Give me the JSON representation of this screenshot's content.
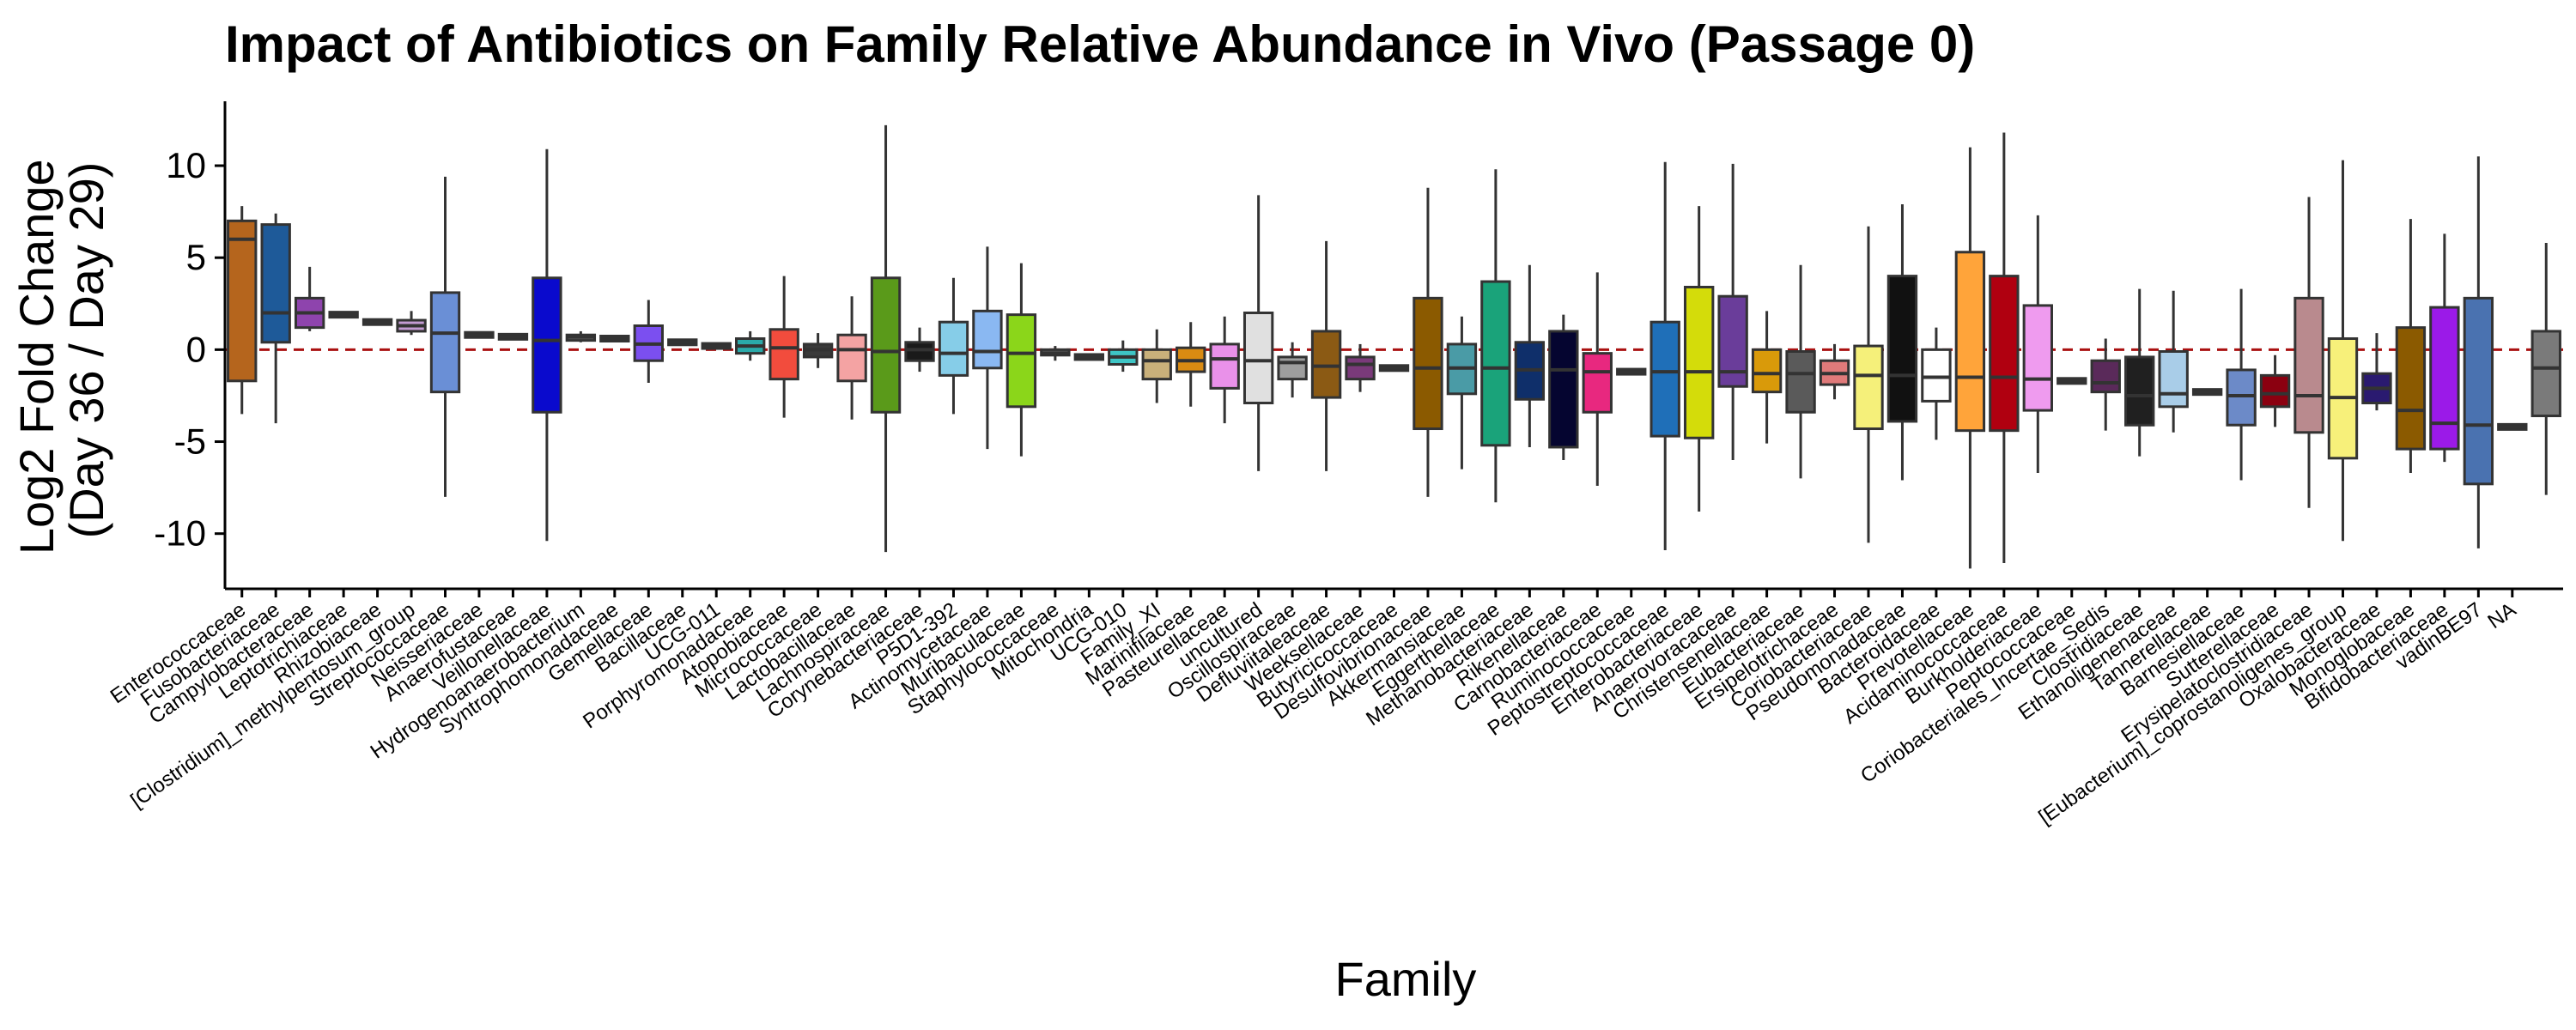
{
  "chart_data": {
    "type": "box",
    "title": "Impact of Antibiotics on Family Relative Abundance in Vivo (Passage 0)",
    "xlabel": "Family",
    "ylabel_line1": "Log2 Fold Change",
    "ylabel_line2": "(Day 36 / Day 29)",
    "ylim": [
      -13,
      13.5
    ],
    "yticks": [
      10,
      5,
      0,
      -5,
      -10
    ],
    "ytick_labels": [
      "10",
      "5",
      "0",
      "-5",
      "-10"
    ],
    "reference_line": {
      "y": 0,
      "color": "#aa1111",
      "style": "dashed"
    },
    "grid": false,
    "fields": [
      "family",
      "whisker_low",
      "q1",
      "median",
      "q3",
      "whisker_high",
      "color"
    ],
    "boxes": [
      [
        "Enterococcaceae",
        -3.5,
        -1.7,
        6.0,
        7.0,
        7.8,
        "#b5651d"
      ],
      [
        "Fusobacteriaceae",
        -4.0,
        0.4,
        2.0,
        6.8,
        7.4,
        "#1e5a99"
      ],
      [
        "Campylobacteraceae",
        1.0,
        1.2,
        2.0,
        2.8,
        4.5,
        "#8e44ad"
      ],
      [
        "Leptotrichiaceae",
        1.9,
        1.9,
        1.9,
        1.9,
        1.9,
        "#555555"
      ],
      [
        "Rhizobiaceae",
        1.5,
        1.5,
        1.5,
        1.5,
        1.5,
        "#555555"
      ],
      [
        "[Clostridium]_methylpentosum_group",
        0.8,
        1.0,
        1.3,
        1.6,
        2.1,
        "#c39bd3"
      ],
      [
        "Streptococcaceae",
        -8.0,
        -2.3,
        0.9,
        3.1,
        9.4,
        "#6a8fd6"
      ],
      [
        "Neisseriaceae",
        0.8,
        0.8,
        0.8,
        0.8,
        0.8,
        "#555555"
      ],
      [
        "Anaerofustaceae",
        0.7,
        0.7,
        0.7,
        0.7,
        0.7,
        "#555555"
      ],
      [
        "Veillonellaceae",
        -10.4,
        -3.4,
        0.5,
        3.9,
        10.9,
        "#0a0acd"
      ],
      [
        "Hydrogenoanaerobacterium",
        0.4,
        0.5,
        0.7,
        0.8,
        1.0,
        "#555555"
      ],
      [
        "Syntrophomonadaceae",
        0.6,
        0.6,
        0.6,
        0.6,
        0.6,
        "#555555"
      ],
      [
        "Gemellaceae",
        -1.8,
        -0.6,
        0.3,
        1.3,
        2.7,
        "#7b4ff0"
      ],
      [
        "Bacillaceae",
        0.4,
        0.4,
        0.4,
        0.4,
        0.4,
        "#555555"
      ],
      [
        "UCG-011",
        0.2,
        0.2,
        0.2,
        0.2,
        0.2,
        "#555555"
      ],
      [
        "Porphyromonadaceae",
        -0.6,
        -0.2,
        0.2,
        0.6,
        1.0,
        "#2aa9a9"
      ],
      [
        "Atopobiaceae",
        -3.7,
        -1.6,
        0.1,
        1.1,
        4.0,
        "#f24c3d"
      ],
      [
        "Micrococcaceae",
        -1.0,
        -0.4,
        0.0,
        0.3,
        0.9,
        "#3a3a3a"
      ],
      [
        "Lactobacillaceae",
        -3.8,
        -1.7,
        0.0,
        0.8,
        2.9,
        "#f4a3a3"
      ],
      [
        "Lachnospiraceae",
        -11.0,
        -3.4,
        -0.1,
        3.9,
        12.2,
        "#5a9a1a"
      ],
      [
        "Corynebacteriaceae",
        -1.2,
        -0.6,
        0.0,
        0.4,
        1.2,
        "#1a1a1a"
      ],
      [
        "P5D1-392",
        -3.5,
        -1.4,
        -0.2,
        1.5,
        3.9,
        "#86cde8"
      ],
      [
        "Actinomycetaceae",
        -5.4,
        -1.0,
        -0.1,
        2.1,
        5.6,
        "#8ab8f2"
      ],
      [
        "Muribaculaceae",
        -5.8,
        -3.1,
        -0.2,
        1.9,
        4.7,
        "#8bd61a"
      ],
      [
        "Staphylococcaceae",
        -0.6,
        -0.3,
        -0.2,
        0.0,
        0.2,
        "#555555"
      ],
      [
        "Mitochondria",
        -0.4,
        -0.4,
        -0.4,
        -0.4,
        -0.4,
        "#555555"
      ],
      [
        "UCG-010",
        -1.2,
        -0.8,
        -0.4,
        0.0,
        0.5,
        "#3ec5c5"
      ],
      [
        "Family_XI",
        -2.9,
        -1.6,
        -0.6,
        0.0,
        1.1,
        "#c9b07a"
      ],
      [
        "Marinifilaceae",
        -3.1,
        -1.2,
        -0.6,
        0.1,
        1.5,
        "#d98b12"
      ],
      [
        "Pasteurellaceae",
        -4.0,
        -2.1,
        -0.5,
        0.3,
        1.8,
        "#e991e9"
      ],
      [
        "uncultured",
        -6.6,
        -2.9,
        -0.6,
        2.0,
        8.4,
        "#e0e0e0"
      ],
      [
        "Oscillospiraceae",
        -2.6,
        -1.6,
        -0.7,
        -0.4,
        0.4,
        "#9e9e9e"
      ],
      [
        "Defluviitaleaceae",
        -6.6,
        -2.6,
        -0.9,
        1.0,
        5.9,
        "#8b5a14"
      ],
      [
        "Weeksellaceae",
        -2.3,
        -1.6,
        -0.8,
        -0.4,
        0.3,
        "#7a3a7a"
      ],
      [
        "Butyricicoccaceae",
        -1.0,
        -1.0,
        -1.0,
        -1.0,
        -1.0,
        "#555555"
      ],
      [
        "Desulfovibrionaceae",
        -8.0,
        -4.3,
        -1.0,
        2.8,
        8.8,
        "#8b5a00"
      ],
      [
        "Akkermansiaceae",
        -6.5,
        -2.4,
        -1.0,
        0.3,
        1.8,
        "#4a9ba6"
      ],
      [
        "Eggerthellaceae",
        -8.3,
        -5.2,
        -1.0,
        3.7,
        9.8,
        "#1aa37a"
      ],
      [
        "Methanobacteriaceae",
        -5.3,
        -2.7,
        -1.1,
        0.4,
        4.6,
        "#0f2f6a"
      ],
      [
        "Rikenellaceae",
        -6.0,
        -5.3,
        -1.1,
        1.0,
        1.9,
        "#050530"
      ],
      [
        "Carnobacteriaceae",
        -7.4,
        -3.4,
        -1.2,
        -0.2,
        4.2,
        "#e8287f"
      ],
      [
        "Ruminococcaceae",
        -1.2,
        -1.2,
        -1.2,
        -1.2,
        -1.2,
        "#555555"
      ],
      [
        "Peptostreptococcaceae",
        -10.9,
        -4.7,
        -1.2,
        1.5,
        10.2,
        "#1f6fb8"
      ],
      [
        "Enterobacteriaceae",
        -8.8,
        -4.8,
        -1.2,
        3.4,
        7.8,
        "#d4dc0a"
      ],
      [
        "Anaerovoracaceae",
        -6.0,
        -2.0,
        -1.2,
        2.9,
        10.1,
        "#6a3d9a"
      ],
      [
        "Christensenellaceae",
        -5.1,
        -2.3,
        -1.3,
        0.0,
        2.1,
        "#d99a0a"
      ],
      [
        "Eubacteriaceae",
        -7.0,
        -3.4,
        -1.3,
        -0.1,
        4.6,
        "#5a5a5a"
      ],
      [
        "Ersipelotrichaceae",
        -2.7,
        -1.9,
        -1.3,
        -0.6,
        0.3,
        "#e07a7a"
      ],
      [
        "Coriobacteriaceae",
        -10.5,
        -4.3,
        -1.4,
        0.2,
        6.7,
        "#f5f07a"
      ],
      [
        "Pseudomonadaceae",
        -7.1,
        -3.9,
        -1.4,
        4.0,
        7.9,
        "#111111"
      ],
      [
        "Bacteroidaceae",
        -4.9,
        -2.8,
        -1.5,
        0.0,
        1.2,
        "#ffffff"
      ],
      [
        "Prevotellaceae",
        -11.9,
        -4.4,
        -1.5,
        5.3,
        11.0,
        "#ffa43a"
      ],
      [
        "Acidaminococcaceae",
        -11.6,
        -4.4,
        -1.5,
        4.0,
        11.8,
        "#b00010"
      ],
      [
        "Burkholderiaceae",
        -6.7,
        -3.3,
        -1.6,
        2.4,
        7.3,
        "#ef9bef"
      ],
      [
        "Peptococcaceae",
        -1.7,
        -1.7,
        -1.7,
        -1.7,
        -1.7,
        "#555555"
      ],
      [
        "Coriobacteriales_Incertae_Sedis",
        -4.4,
        -2.3,
        -1.8,
        -0.6,
        0.6,
        "#5a2a5a"
      ],
      [
        "Clostridiaceae",
        -5.8,
        -4.1,
        -2.5,
        -0.4,
        3.3,
        "#202020"
      ],
      [
        "Ethanoligenenaceae",
        -4.5,
        -3.1,
        -2.4,
        -0.1,
        3.2,
        "#a9cde8"
      ],
      [
        "Tannerellaceae",
        -2.3,
        -2.3,
        -2.3,
        -2.3,
        -2.3,
        "#555555"
      ],
      [
        "Barnesiellaceae",
        -7.1,
        -4.1,
        -2.5,
        -1.1,
        3.3,
        "#6c8ac8"
      ],
      [
        "Sutterellaceae",
        -4.2,
        -3.1,
        -2.4,
        -1.4,
        -0.3,
        "#8b0010"
      ],
      [
        "Erysipelatoclostridiaceae",
        -8.6,
        -4.5,
        -2.5,
        2.8,
        8.3,
        "#b98a8e"
      ],
      [
        "[Eubacterium]_coprostanoligenes_group",
        -10.4,
        -5.9,
        -2.6,
        0.6,
        10.3,
        "#f7f07a"
      ],
      [
        "Oxalobacteraceae",
        -3.3,
        -2.9,
        -2.1,
        -1.3,
        0.9,
        "#2a1a70"
      ],
      [
        "Monoglobaceae",
        -6.7,
        -5.4,
        -3.3,
        1.2,
        7.1,
        "#8b5a00"
      ],
      [
        "Bifidobacteriaceae",
        -6.1,
        -5.4,
        -4.0,
        2.3,
        6.3,
        "#9b1ae8"
      ],
      [
        "vadinBE97",
        -10.8,
        -7.3,
        -4.1,
        2.8,
        10.5,
        "#4a72b0"
      ],
      [
        "NA",
        -4.2,
        -4.2,
        -4.2,
        -4.2,
        -4.2,
        "#555555"
      ],
      [
        "",
        -7.9,
        -3.6,
        -1.0,
        1.0,
        5.8,
        "#7a7a7a"
      ]
    ],
    "xtick_labels": [
      "Enterococcaceae",
      "Fusobacteriaceae",
      "Campylobacteraceae",
      "Leptotrichiaceae",
      "Rhizobiaceae",
      "[Clostridium]_methylpentosum_group",
      "Streptococcaceae",
      "Neisseriaceae",
      "Anaerofustaceae",
      "Veillonellaceae",
      "Hydrogenoanaerobacterium",
      "Syntrophomonadaceae",
      "Gemellaceae",
      "Bacillaceae",
      "UCG-011",
      "Porphyromonadaceae",
      "Atopobiaceae",
      "Micrococcaceae",
      "Lactobacillaceae",
      "Lachnospiraceae",
      "Corynebacteriaceae",
      "P5D1-392",
      "Actinomycetaceae",
      "Muribaculaceae",
      "Staphylococcaceae",
      "Mitochondria",
      "UCG-010",
      "Family_XI",
      "Marinifilaceae",
      "Pasteurellaceae",
      "uncultured",
      "Oscillospiraceae",
      "Defluviitaleaceae",
      "Weeksellaceae",
      "Butyricicoccaceae",
      "Desulfovibrionaceae",
      "Akkermansiaceae",
      "Eggerthellaceae",
      "Methanobacteriaceae",
      "Rikenellaceae",
      "Carnobacteriaceae",
      "Ruminococcaceae",
      "Peptostreptococcaceae",
      "Enterobacteriaceae",
      "Anaerovoracaceae",
      "Christensenellaceae",
      "Eubacteriaceae",
      "Ersipelotrichaceae",
      "Coriobacteriaceae",
      "Pseudomonadaceae",
      "Bacteroidaceae",
      "Prevotellaceae",
      "Acidaminococcaceae",
      "Burkholderiaceae",
      "Peptococcaceae",
      "Coriobacteriales_Incertae_Sedis",
      "Clostridiaceae",
      "Ethanoligenenaceae",
      "Tannerellaceae",
      "Barnesiellaceae",
      "Sutterellaceae",
      "Erysipelatoclostridiaceae",
      "[Eubacterium]_coprostanoligenes_group",
      "Oxalobacteraceae",
      "Monoglobaceae",
      "Bifidobacteriaceae",
      "vadinBE97",
      "NA"
    ]
  }
}
